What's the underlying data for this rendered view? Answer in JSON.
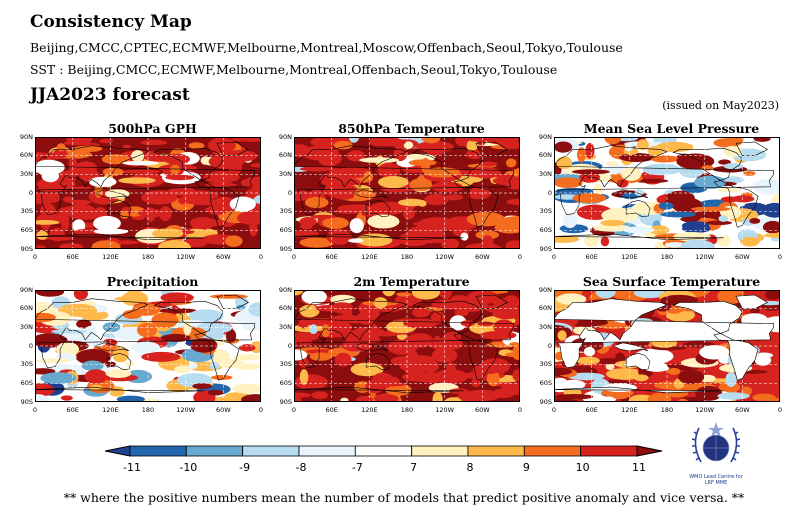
{
  "header": {
    "title": "Consistency Map",
    "models_line": "Beijing,CMCC,CPTEC,ECMWF,Melbourne,Montreal,Moscow,Offenbach,Seoul,Tokyo,Toulouse",
    "sst_line": "SST : Beijing,CMCC,ECMWF,Melbourne,Montreal,Offenbach,Seoul,Tokyo,Toulouse",
    "forecast": "JJA2023 forecast",
    "issued": "(issued on May2023)"
  },
  "axes": {
    "lat_labels": [
      "90N",
      "60N",
      "30N",
      "0",
      "30S",
      "60S",
      "90S"
    ],
    "lon_labels": [
      "0",
      "60E",
      "120E",
      "180",
      "120W",
      "60W",
      "0"
    ]
  },
  "panels": [
    {
      "title": "500hPa GPH",
      "dominant": "strong-positive"
    },
    {
      "title": "850hPa Temperature",
      "dominant": "strong-positive"
    },
    {
      "title": "Mean Sea Level Pressure",
      "dominant": "mixed"
    },
    {
      "title": "Precipitation",
      "dominant": "mixed"
    },
    {
      "title": "2m Temperature",
      "dominant": "strong-positive"
    },
    {
      "title": "Sea Surface Temperature",
      "dominant": "ocean-positive"
    }
  ],
  "colorbar": {
    "labels": [
      "-11",
      "-10",
      "-9",
      "-8",
      "-7",
      "7",
      "8",
      "9",
      "10",
      "11"
    ],
    "colors": [
      "#1f3f8f",
      "#2166ac",
      "#67a9cf",
      "#b7dcef",
      "#e8f4fb",
      "#ffffff",
      "#fff1c0",
      "#fdb94a",
      "#f46d1f",
      "#d7231f",
      "#8b0d0d"
    ]
  },
  "logo": {
    "icon": "wmo-emblem-icon",
    "text_line1": "WMO Lead Centre for",
    "text_line2": "LRF MME"
  },
  "footnote": "** where the positive numbers mean the number of models that predict positive anomaly and vice versa. **"
}
